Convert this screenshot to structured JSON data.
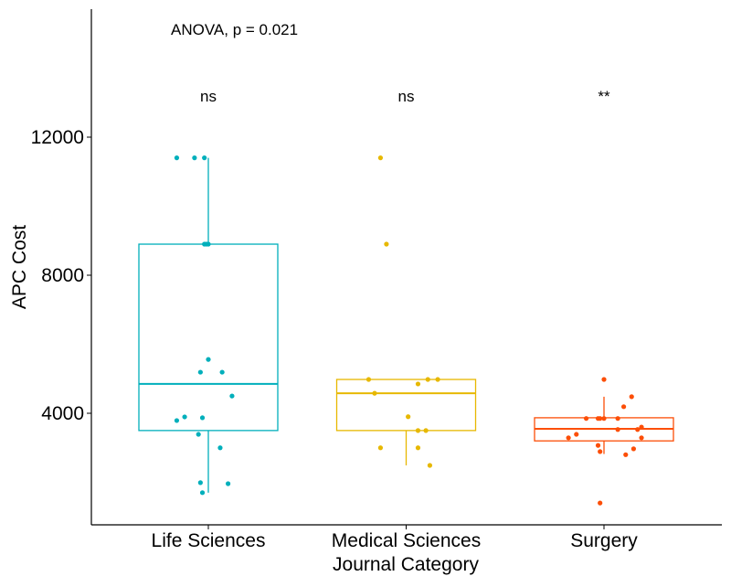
{
  "chart_data": {
    "type": "box",
    "title": "",
    "xlabel": "Journal Category",
    "ylabel": "APC Cost",
    "ylim": [
      800,
      15700
    ],
    "yticks": [
      4000,
      8000,
      12000
    ],
    "grid": false,
    "annotation": "ANOVA, p = 0.021",
    "categories": [
      "Life Sciences",
      "Medical Sciences",
      "Surgery"
    ],
    "significance": [
      "ns",
      "ns",
      "**"
    ],
    "colors": [
      "#00AFBB",
      "#E7B800",
      "#FC4E07"
    ],
    "boxes": [
      {
        "q1": 3500,
        "median": 4850,
        "q3": 8900,
        "whisker_low": 1700,
        "whisker_high": 11400
      },
      {
        "q1": 3500,
        "median": 4580,
        "q3": 4980,
        "whisker_low": 2490,
        "whisker_high": 4980
      },
      {
        "q1": 3200,
        "median": 3550,
        "q3": 3870,
        "whisker_low": 2820,
        "whisker_high": 4480
      }
    ],
    "points": [
      [
        [
          -0.16,
          11400
        ],
        [
          -0.07,
          11400
        ],
        [
          -0.02,
          11400
        ],
        [
          -0.02,
          8900
        ],
        [
          -0.01,
          8900
        ],
        [
          0.0,
          8900
        ],
        [
          0.0,
          5560
        ],
        [
          -0.04,
          5190
        ],
        [
          0.07,
          5190
        ],
        [
          0.12,
          4500
        ],
        [
          -0.16,
          3790
        ],
        [
          -0.12,
          3895
        ],
        [
          -0.03,
          3870
        ],
        [
          -0.05,
          3390
        ],
        [
          0.06,
          3000
        ],
        [
          -0.04,
          1990
        ],
        [
          0.1,
          1960
        ],
        [
          -0.03,
          1700
        ]
      ],
      [
        [
          -0.13,
          11400
        ],
        [
          -0.1,
          8900
        ],
        [
          -0.19,
          4980
        ],
        [
          0.11,
          4980
        ],
        [
          0.16,
          4980
        ],
        [
          0.06,
          4850
        ],
        [
          -0.16,
          4580
        ],
        [
          0.01,
          3900
        ],
        [
          0.06,
          3500
        ],
        [
          0.1,
          3500
        ],
        [
          -0.13,
          3000
        ],
        [
          0.06,
          3000
        ],
        [
          0.12,
          2490
        ]
      ],
      [
        [
          0.0,
          4980
        ],
        [
          0.14,
          4480
        ],
        [
          0.1,
          4190
        ],
        [
          -0.09,
          3850
        ],
        [
          -0.03,
          3850
        ],
        [
          -0.02,
          3850
        ],
        [
          0.0,
          3850
        ],
        [
          0.07,
          3850
        ],
        [
          0.07,
          3530
        ],
        [
          0.17,
          3530
        ],
        [
          0.19,
          3600
        ],
        [
          -0.14,
          3390
        ],
        [
          -0.18,
          3290
        ],
        [
          0.19,
          3290
        ],
        [
          -0.03,
          3070
        ],
        [
          -0.02,
          2890
        ],
        [
          0.15,
          2970
        ],
        [
          0.11,
          2800
        ],
        [
          -0.02,
          1400
        ]
      ]
    ]
  }
}
